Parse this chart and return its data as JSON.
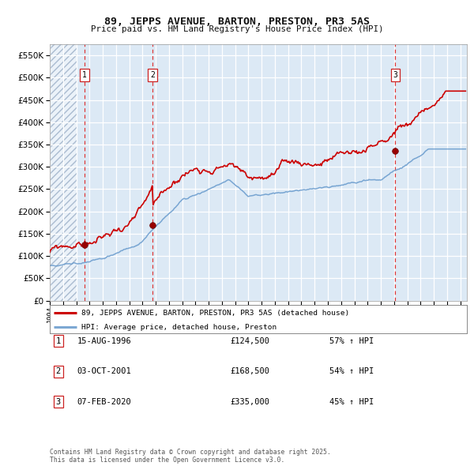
{
  "title": "89, JEPPS AVENUE, BARTON, PRESTON, PR3 5AS",
  "subtitle": "Price paid vs. HM Land Registry's House Price Index (HPI)",
  "legend_line1": "89, JEPPS AVENUE, BARTON, PRESTON, PR3 5AS (detached house)",
  "legend_line2": "HPI: Average price, detached house, Preston",
  "transactions": [
    {
      "num": 1,
      "date": "15-AUG-1996",
      "year": 1996.62,
      "price": 124500,
      "pct": "57%",
      "dir": "↑"
    },
    {
      "num": 2,
      "date": "03-OCT-2001",
      "year": 2001.75,
      "price": 168500,
      "pct": "54%",
      "dir": "↑"
    },
    {
      "num": 3,
      "date": "07-FEB-2020",
      "year": 2020.1,
      "price": 335000,
      "pct": "45%",
      "dir": "↑"
    }
  ],
  "footer1": "Contains HM Land Registry data © Crown copyright and database right 2025.",
  "footer2": "This data is licensed under the Open Government Licence v3.0.",
  "xmin": 1994,
  "xmax": 2025.5,
  "ymin": 0,
  "ymax": 575000,
  "yticks": [
    0,
    50000,
    100000,
    150000,
    200000,
    250000,
    300000,
    350000,
    400000,
    450000,
    500000,
    550000
  ],
  "bg_color": "#dce9f5",
  "grid_color": "#ffffff",
  "red_line_color": "#cc0000",
  "blue_line_color": "#6699cc",
  "red_dot_color": "#990000",
  "dashed_line_color": "#dd3333"
}
